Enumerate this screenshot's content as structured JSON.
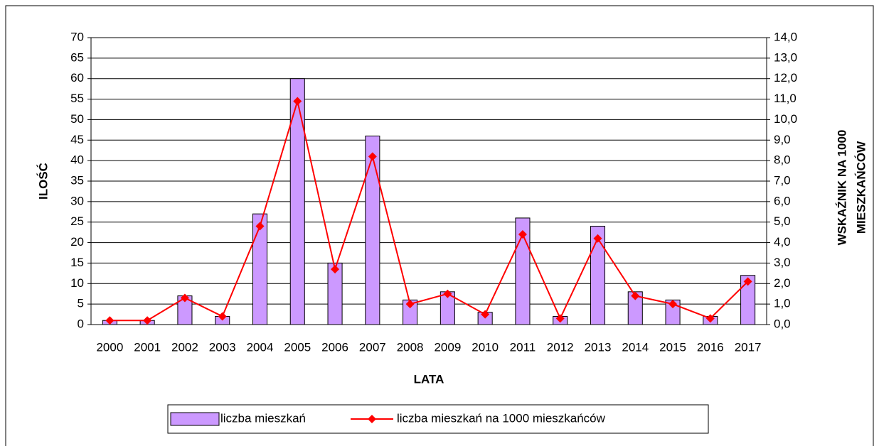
{
  "chart_data": {
    "type": "bar",
    "xlabel": "LATA",
    "ylabel": "ILOŚĆ",
    "y2label": [
      "WSKAŹNIK NA 1000",
      "MIESZKAŃCÓW"
    ],
    "categories": [
      "2000",
      "2001",
      "2002",
      "2003",
      "2004",
      "2005",
      "2006",
      "2007",
      "2008",
      "2009",
      "2010",
      "2011",
      "2012",
      "2013",
      "2014",
      "2015",
      "2016",
      "2017"
    ],
    "series": [
      {
        "name": "liczba mieszkań",
        "color": "#cc99ff",
        "type": "bar",
        "values": [
          1,
          1,
          7,
          2,
          27,
          60,
          15,
          46,
          6,
          8,
          3,
          26,
          2,
          24,
          8,
          6,
          2,
          12
        ]
      },
      {
        "name": "liczba mieszkań na 1000 mieszkańców",
        "color": "#ff0000",
        "type": "line",
        "axis": "y2",
        "values": [
          0.2,
          0.2,
          1.3,
          0.4,
          4.8,
          10.9,
          2.7,
          8.2,
          1.0,
          1.5,
          0.5,
          4.4,
          0.3,
          4.2,
          1.4,
          1.0,
          0.3,
          2.1
        ]
      }
    ],
    "ylim": [
      0,
      70
    ],
    "yticks": [
      0,
      5,
      10,
      15,
      20,
      25,
      30,
      35,
      40,
      45,
      50,
      55,
      60,
      65,
      70
    ],
    "y2lim": [
      0,
      14
    ],
    "y2ticks": [
      {
        "value": 0,
        "label": "0,0"
      },
      {
        "value": 1,
        "label": "1,0"
      },
      {
        "value": 2,
        "label": "2,0"
      },
      {
        "value": 3,
        "label": "3,0"
      },
      {
        "value": 4,
        "label": "4,0"
      },
      {
        "value": 5,
        "label": "5,0"
      },
      {
        "value": 6,
        "label": "6,0"
      },
      {
        "value": 7,
        "label": "7,0"
      },
      {
        "value": 8,
        "label": "8,0"
      },
      {
        "value": 9,
        "label": "9,0"
      },
      {
        "value": 10,
        "label": "10,0"
      },
      {
        "value": 11,
        "label": "11,0"
      },
      {
        "value": 12,
        "label": "12,0"
      },
      {
        "value": 13,
        "label": "13,0"
      },
      {
        "value": 14,
        "label": "14,0"
      }
    ],
    "grid": true,
    "legend": "bottom"
  }
}
